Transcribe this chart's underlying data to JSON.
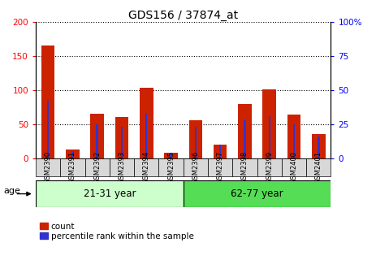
{
  "title": "GDS156 / 37874_at",
  "categories": [
    "GSM2390",
    "GSM2391",
    "GSM2392",
    "GSM2393",
    "GSM2394",
    "GSM2395",
    "GSM2396",
    "GSM2397",
    "GSM2398",
    "GSM2399",
    "GSM2400",
    "GSM2401"
  ],
  "count_values": [
    165,
    13,
    65,
    60,
    104,
    8,
    56,
    20,
    80,
    101,
    64,
    35
  ],
  "percentile_values": [
    42,
    5,
    25,
    23,
    33,
    4,
    23,
    10,
    28,
    31,
    25,
    16
  ],
  "group1_label": "21-31 year",
  "group2_label": "62-77 year",
  "group1_count": 6,
  "group2_count": 6,
  "age_label": "age",
  "ylim_left": [
    0,
    200
  ],
  "ylim_right": [
    0,
    100
  ],
  "yticks_left": [
    0,
    50,
    100,
    150,
    200
  ],
  "yticks_right": [
    0,
    25,
    50,
    75,
    100
  ],
  "ytick_labels_right": [
    "0",
    "25",
    "50",
    "75",
    "100%"
  ],
  "bar_color_red": "#cc2200",
  "bar_color_blue": "#3333cc",
  "bar_width": 0.55,
  "blue_bar_width": 0.08,
  "group1_bg": "#ccffcc",
  "group2_bg": "#55dd55",
  "xtick_bg": "#d8d8d8",
  "grid_color": "black",
  "grid_linestyle": "dotted",
  "legend_label_red": "count",
  "legend_label_blue": "percentile rank within the sample"
}
